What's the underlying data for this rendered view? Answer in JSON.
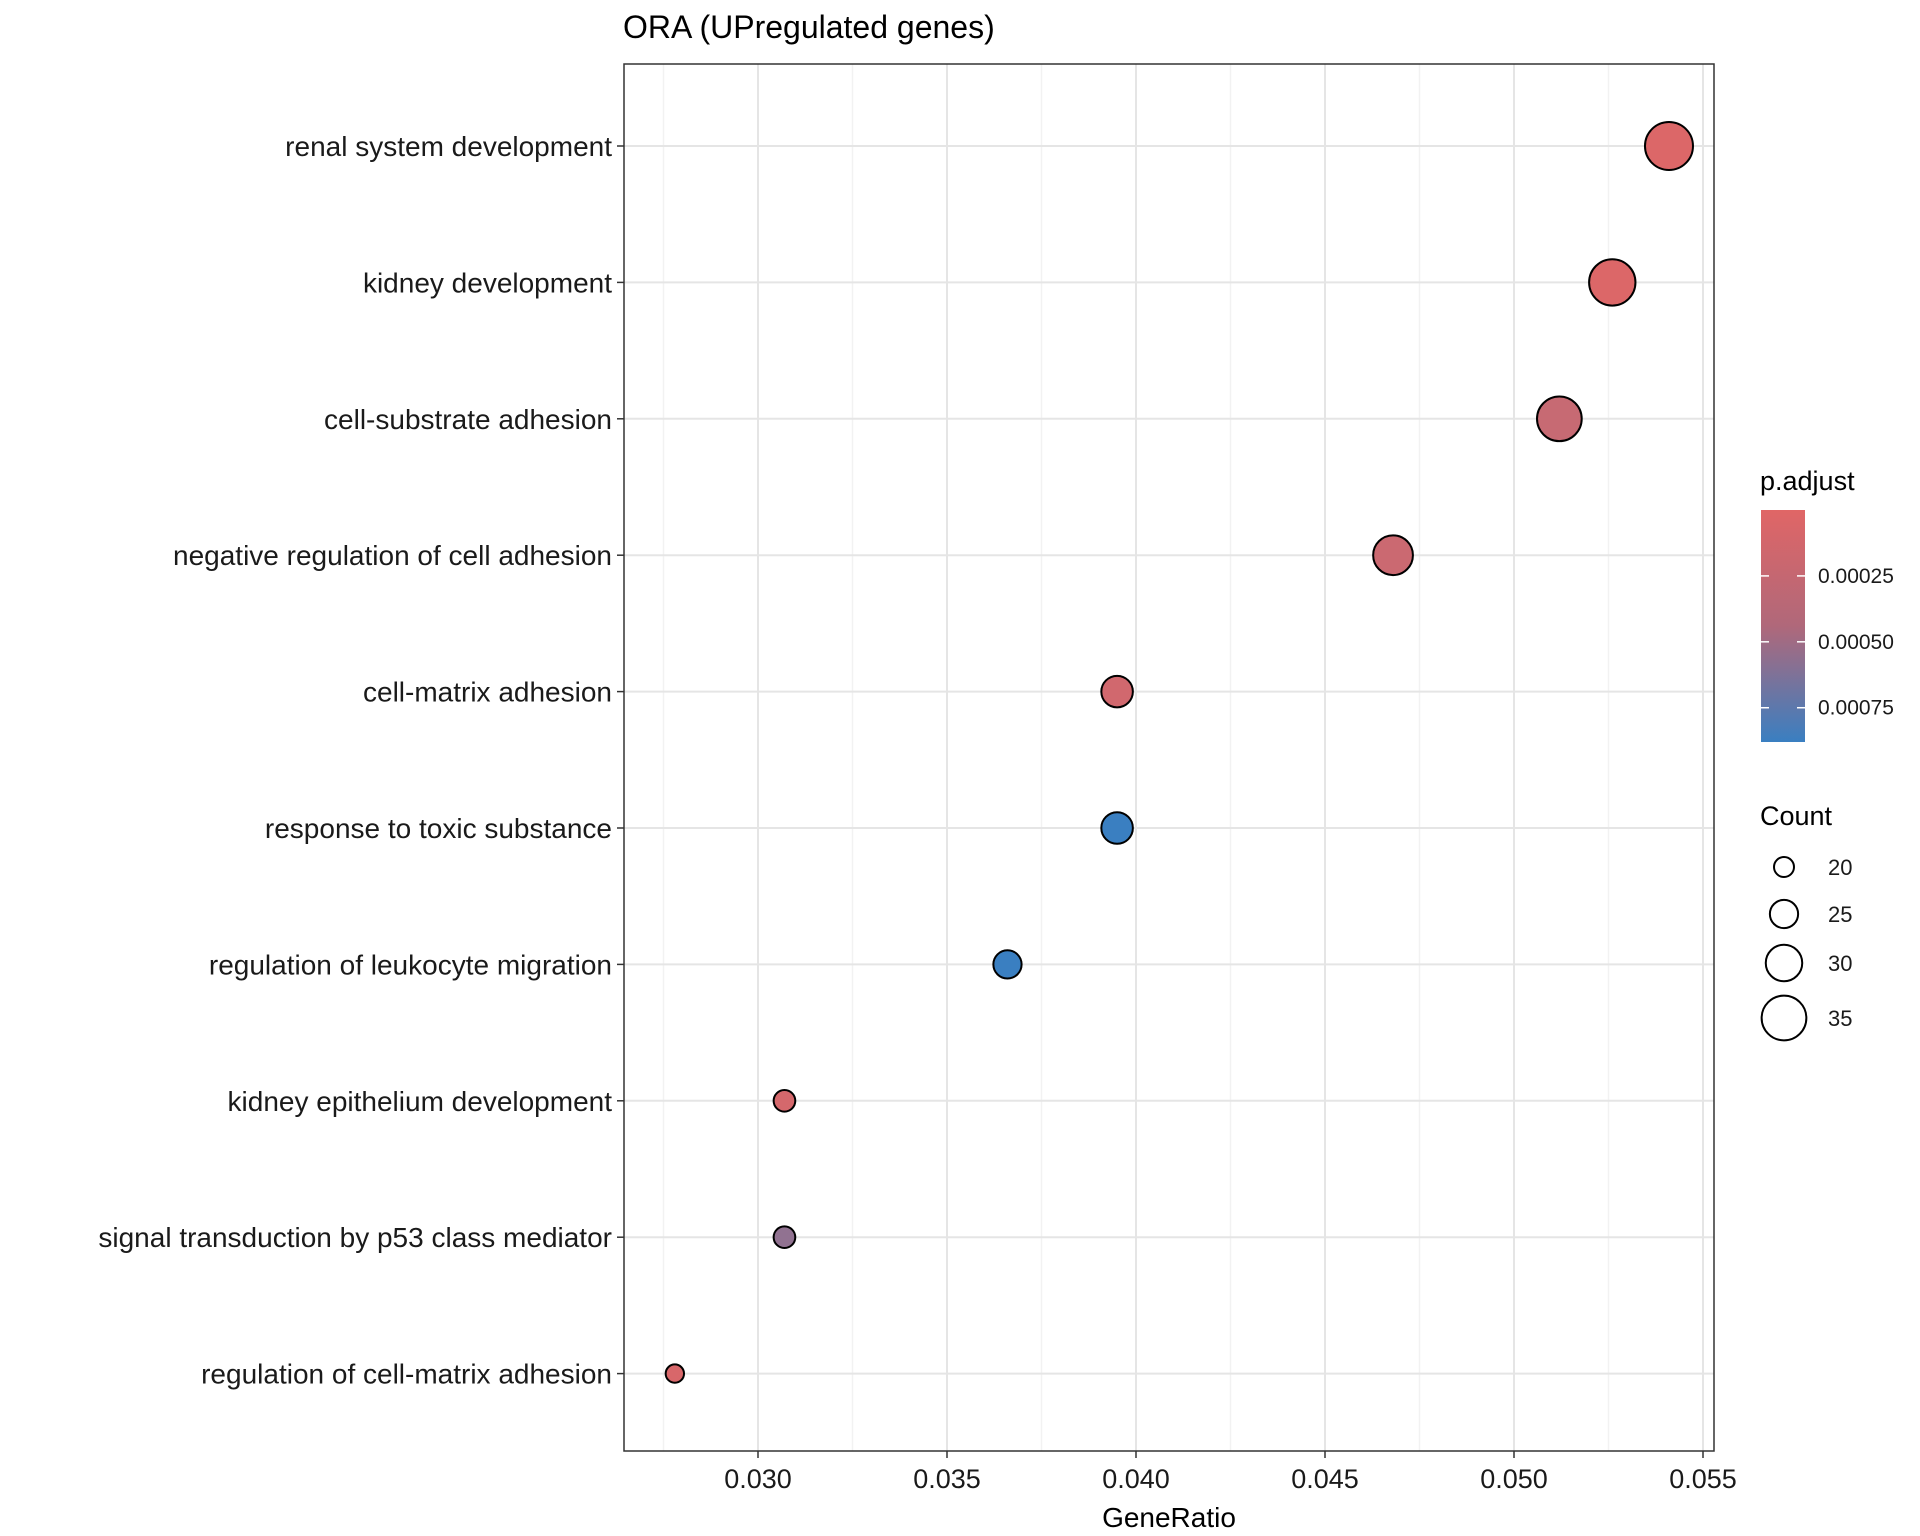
{
  "chart_data": {
    "type": "scatter",
    "title": "ORA (UPregulated genes)",
    "xlabel": "GeneRatio",
    "ylabel": "",
    "xlim": [
      0.0265,
      0.0555
    ],
    "x_ticks": [
      0.03,
      0.035,
      0.04,
      0.045,
      0.05,
      0.055
    ],
    "x_tick_labels": [
      "0.030",
      "0.035",
      "0.040",
      "0.045",
      "0.050",
      "0.055"
    ],
    "grid": true,
    "categories": [
      "renal system development",
      "kidney development",
      "cell-substrate adhesion",
      "negative regulation of cell adhesion",
      "cell-matrix adhesion",
      "response to toxic substance",
      "regulation of leukocyte migration",
      "kidney epithelium development",
      "signal transduction by p53 class mediator",
      "regulation of cell-matrix adhesion"
    ],
    "points": [
      {
        "term": "renal system development",
        "gene_ratio": 0.0541,
        "count": 37,
        "p_adjust": 2e-05
      },
      {
        "term": "kidney development",
        "gene_ratio": 0.0526,
        "count": 36,
        "p_adjust": 2e-05
      },
      {
        "term": "cell-substrate adhesion",
        "gene_ratio": 0.0512,
        "count": 35,
        "p_adjust": 0.00013
      },
      {
        "term": "negative regulation of cell adhesion",
        "gene_ratio": 0.0468,
        "count": 32,
        "p_adjust": 0.00011
      },
      {
        "term": "cell-matrix adhesion",
        "gene_ratio": 0.0395,
        "count": 27,
        "p_adjust": 8e-05
      },
      {
        "term": "response to toxic substance",
        "gene_ratio": 0.0395,
        "count": 27,
        "p_adjust": 0.00088
      },
      {
        "term": "regulation of leukocyte migration",
        "gene_ratio": 0.0366,
        "count": 25,
        "p_adjust": 0.00088
      },
      {
        "term": "kidney epithelium development",
        "gene_ratio": 0.0307,
        "count": 21,
        "p_adjust": 6e-05
      },
      {
        "term": "signal transduction by p53 class mediator",
        "gene_ratio": 0.0307,
        "count": 21,
        "p_adjust": 0.00042
      },
      {
        "term": "regulation of cell-matrix adhesion",
        "gene_ratio": 0.0278,
        "count": 19,
        "p_adjust": 4e-05
      }
    ],
    "color_legend": {
      "title": "p.adjust",
      "range": [
        0.0,
        0.00088
      ],
      "ticks": [
        0.00025,
        0.0005,
        0.00075
      ],
      "tick_labels": [
        "0.00025",
        "0.00050",
        "0.00075"
      ],
      "low_color": "#e06666",
      "high_color": "#3a7fc1"
    },
    "size_legend": {
      "title": "Count",
      "values": [
        20,
        25,
        30,
        35
      ],
      "labels": [
        "20",
        "25",
        "30",
        "35"
      ]
    },
    "legend_position": "right"
  }
}
